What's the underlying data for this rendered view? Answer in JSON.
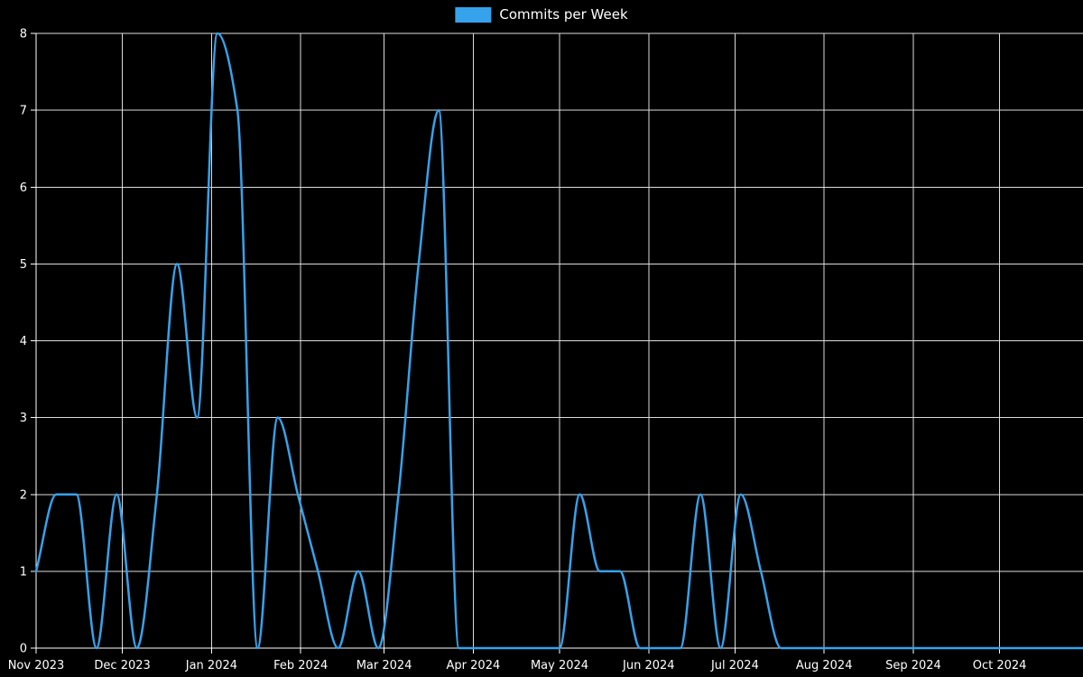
{
  "chart_data": {
    "type": "line",
    "title": "Commits per Week",
    "legend": {
      "label": "Commits per Week",
      "position": "top-center"
    },
    "background": "#000000",
    "colors": {
      "series": "#36a2eb",
      "grid": "#dcdcdc",
      "axis": "#ffffff",
      "text": "#ffffff"
    },
    "x": {
      "unit": "week",
      "weeks_total": 53,
      "tick_labels": [
        "Nov 2023",
        "Dec 2023",
        "Jan 2024",
        "Feb 2024",
        "Mar 2024",
        "Apr 2024",
        "May 2024",
        "Jun 2024",
        "Jul 2024",
        "Aug 2024",
        "Sep 2024",
        "Oct 2024"
      ],
      "tick_day_offsets": [
        0,
        30,
        61,
        92,
        121,
        152,
        182,
        213,
        243,
        274,
        305,
        335
      ]
    },
    "y": {
      "min": 0,
      "max": 8,
      "tick_step": 1,
      "tick_labels": [
        "0",
        "1",
        "2",
        "3",
        "4",
        "5",
        "6",
        "7",
        "8"
      ]
    },
    "grid": true,
    "series": [
      {
        "name": "Commits per Week",
        "color": "#36a2eb",
        "interpolation": "monotone",
        "values": [
          1,
          2,
          2,
          0,
          2,
          0,
          2,
          5,
          3,
          8,
          7,
          0,
          3,
          2,
          1,
          0,
          1,
          0,
          2,
          5,
          7,
          0,
          0,
          0,
          0,
          0,
          0,
          2,
          1,
          1,
          0,
          0,
          0,
          2,
          0,
          2,
          1,
          0,
          0,
          0,
          0,
          0,
          0,
          0,
          0,
          0,
          0,
          0,
          0,
          0,
          0,
          0,
          0
        ]
      }
    ]
  }
}
